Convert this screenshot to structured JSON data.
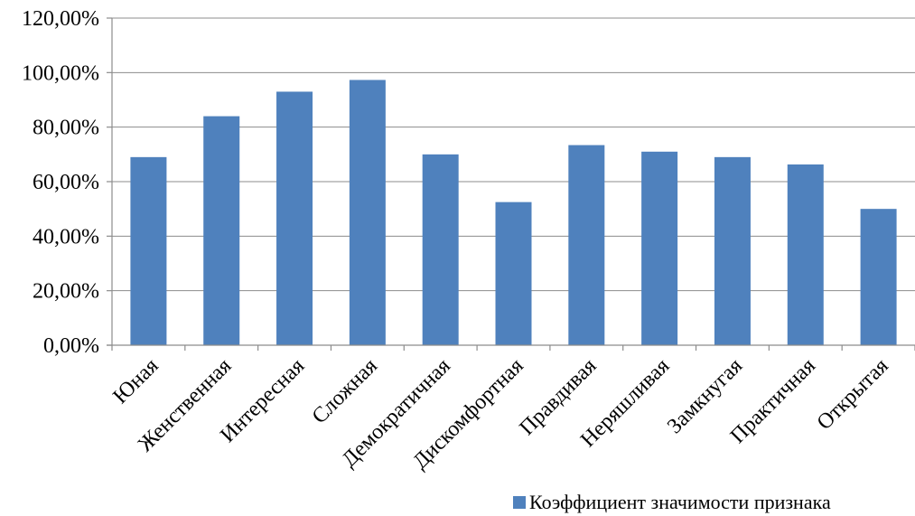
{
  "chart_data": {
    "type": "bar",
    "categories": [
      "Юная",
      "Женственная",
      "Интересная",
      "Сложная",
      "Демократичная",
      "Дискомфортная",
      "Правдивая",
      "Неряшливая",
      "Замкнугая",
      "Практичная",
      "Открытая"
    ],
    "series": [
      {
        "name": "Коэффициент значимости признака",
        "values": [
          69,
          84,
          93,
          97.3,
          70,
          52.5,
          73.4,
          71,
          69,
          66.3,
          50
        ],
        "color": "#4f81bd"
      }
    ],
    "ylim": [
      0,
      120
    ],
    "yticks": [
      "0,00%",
      "20,00%",
      "40,00%",
      "60,00%",
      "80,00%",
      "100,00%",
      "120,00%"
    ],
    "grid": true,
    "legend_position": "bottom-right"
  }
}
